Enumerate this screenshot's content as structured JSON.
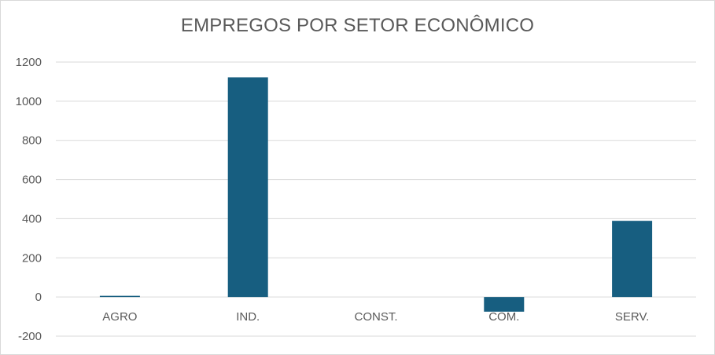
{
  "chart_data": {
    "type": "bar",
    "title": "EMPREGOS POR SETOR ECONÔMICO",
    "categories": [
      "AGRO",
      "IND.",
      "CONST.",
      "COM.",
      "SERV."
    ],
    "values": [
      6,
      1122,
      0,
      -75,
      389
    ],
    "ylim": [
      -200,
      1200
    ],
    "yticks": [
      1200,
      1000,
      800,
      600,
      400,
      200,
      0,
      -200
    ],
    "grid": true,
    "bar_color": "#175e80",
    "grid_color": "#d9d9d9",
    "text_color": "#595959"
  }
}
